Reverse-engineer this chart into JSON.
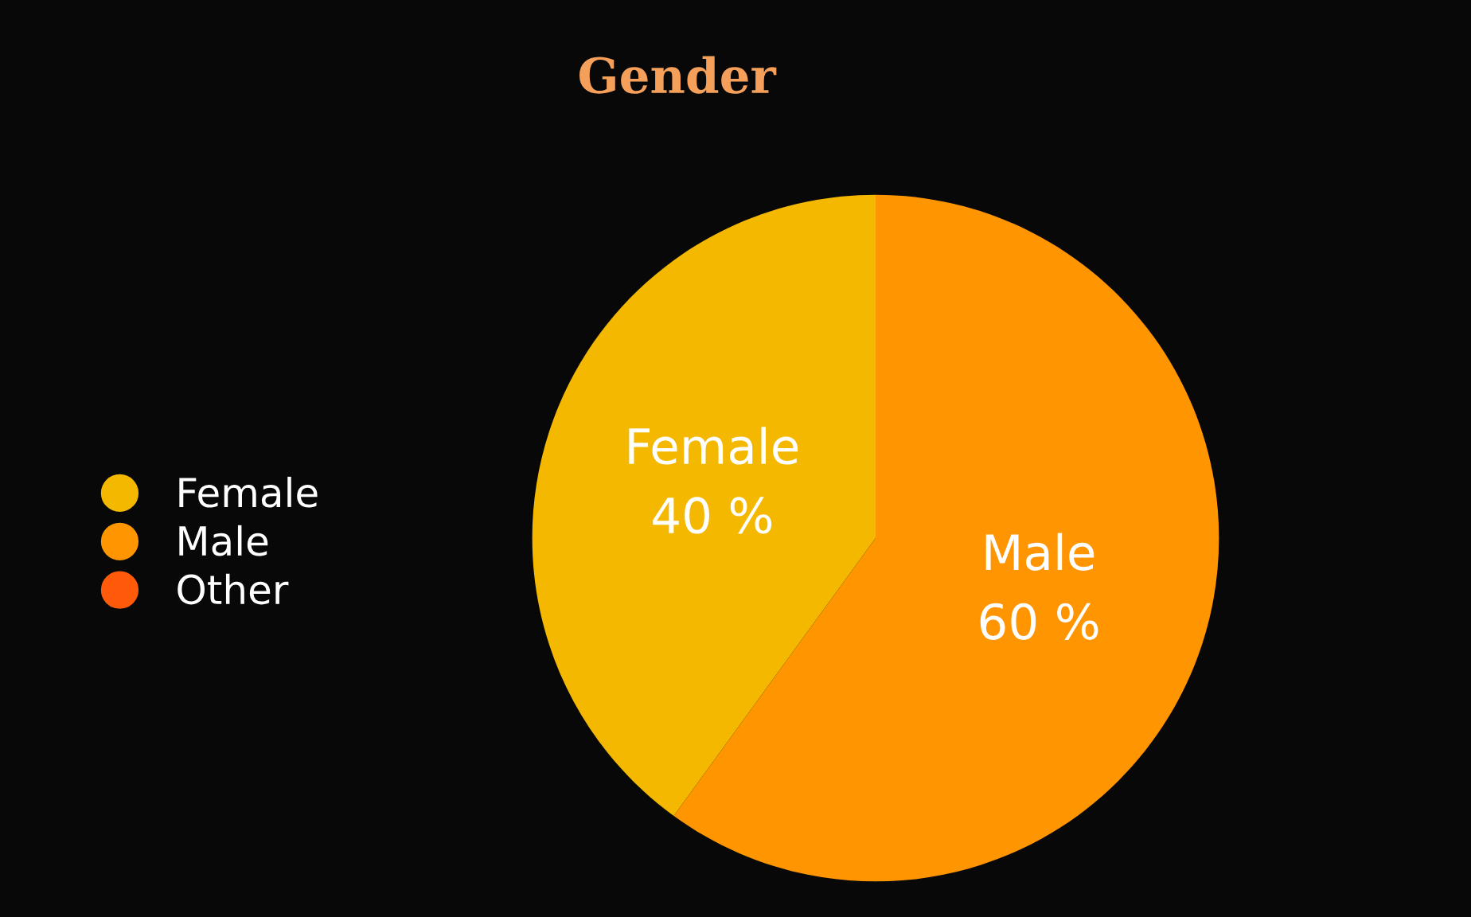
{
  "chart_data": {
    "type": "pie",
    "title": "Gender",
    "categories": [
      "Female",
      "Male",
      "Other"
    ],
    "values": [
      40,
      60,
      0
    ],
    "value_labels": [
      "40 %",
      "60 %",
      null
    ],
    "colors": [
      "#f5b800",
      "#ff9500",
      "#ff5a0a"
    ],
    "legend": "left"
  }
}
